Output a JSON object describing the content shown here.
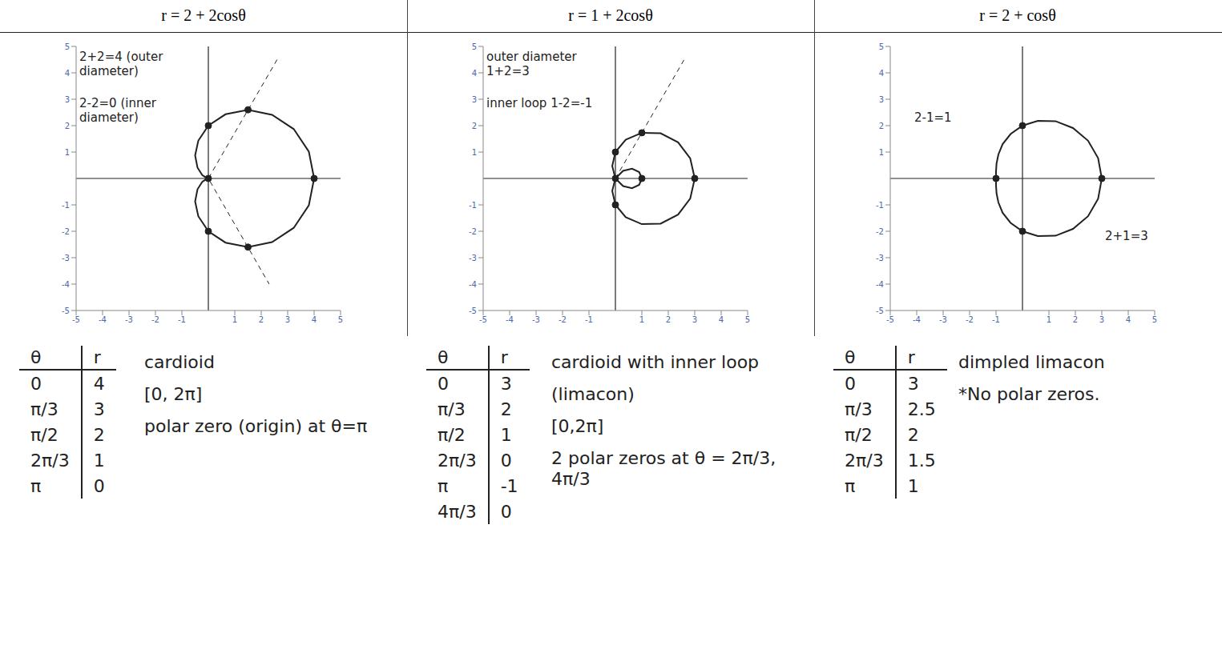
{
  "chart_data": [
    {
      "type": "line",
      "title": "r = 2 + 2cosθ",
      "xlim": [
        -5,
        5
      ],
      "ylim": [
        -5,
        5
      ],
      "xticks": [
        -5,
        -4,
        -3,
        -2,
        -1,
        1,
        2,
        3,
        4,
        5
      ],
      "yticks": [
        -5,
        -4,
        -3,
        -2,
        -1,
        1,
        2,
        3,
        4,
        5
      ],
      "series": [
        {
          "type": "line",
          "color": "#222222",
          "x": [
            4,
            3.8,
            3.23,
            2.41,
            1.5,
            0.65,
            0,
            -0.38,
            -0.5,
            -0.41,
            -0.23,
            -0.07,
            0,
            -0.07,
            -0.23,
            -0.41,
            -0.5,
            -0.38,
            0,
            0.65,
            1.5,
            2.41,
            3.23,
            3.8,
            4
          ],
          "values": [
            0,
            1.02,
            1.87,
            2.41,
            2.6,
            2.43,
            2,
            1.43,
            0.87,
            0.41,
            0.13,
            0.02,
            0,
            -0.02,
            -0.13,
            -0.41,
            -0.87,
            -1.43,
            -2,
            -2.43,
            -2.6,
            -2.41,
            -1.87,
            -1.02,
            0
          ]
        },
        {
          "type": "line",
          "line_style": "dashed",
          "color": "#222222",
          "x": [
            2.6,
            0,
            2.3
          ],
          "values": [
            4.5,
            0,
            -4
          ]
        },
        {
          "type": "scatter",
          "marker": "circle",
          "color": "#222222",
          "x": [
            4,
            0,
            0,
            0,
            1.5,
            1.5
          ],
          "values": [
            0,
            2,
            -2,
            0,
            2.6,
            -2.6
          ]
        }
      ],
      "annotations": [
        "2+2=4 (outer diameter)",
        "2-2=0 (inner diameter)"
      ],
      "notes": [
        "cardioid",
        "[0, 2π]",
        "polar zero (origin) at θ=π"
      ],
      "table": {
        "columns": [
          "θ",
          "r"
        ],
        "rows": [
          [
            "0",
            4
          ],
          [
            "π/3",
            3
          ],
          [
            "π/2",
            2
          ],
          [
            "2π/3",
            1
          ],
          [
            "π",
            0
          ]
        ]
      }
    },
    {
      "type": "line",
      "title": "r = 1 + 2cosθ",
      "xlim": [
        -5,
        5
      ],
      "ylim": [
        -5,
        5
      ],
      "xticks": [
        -5,
        -4,
        -3,
        -2,
        -1,
        1,
        2,
        3,
        4,
        5
      ],
      "yticks": [
        -5,
        -4,
        -3,
        -2,
        -1,
        1,
        2,
        3,
        4,
        5
      ],
      "series": [
        {
          "type": "line",
          "color": "#222222",
          "x": [
            3,
            2.83,
            2.37,
            1.71,
            1,
            0.39,
            0,
            -0.12,
            0,
            0.29,
            0.63,
            0.9,
            1,
            0.9,
            0.63,
            0.29,
            0,
            -0.12,
            0,
            0.39,
            1,
            1.71,
            2.37,
            2.83,
            3
          ],
          "values": [
            0,
            0.76,
            1.37,
            1.71,
            1.73,
            1.47,
            1,
            0.47,
            0,
            -0.29,
            -0.37,
            -0.24,
            0,
            0.24,
            0.37,
            0.29,
            0,
            -0.47,
            -1,
            -1.47,
            -1.73,
            -1.71,
            -1.37,
            -0.76,
            0
          ]
        },
        {
          "type": "line",
          "line_style": "dashed",
          "color": "#222222",
          "x": [
            0,
            2.6
          ],
          "values": [
            0,
            4.5
          ]
        },
        {
          "type": "scatter",
          "marker": "circle",
          "color": "#222222",
          "x": [
            3,
            0,
            0,
            0,
            1,
            1
          ],
          "values": [
            0,
            1,
            -1,
            0,
            0,
            1.73
          ]
        }
      ],
      "annotations": [
        "outer diameter 1+2=3",
        "inner loop 1-2=-1"
      ],
      "notes": [
        "cardioid with inner loop",
        "(limacon)",
        "[0,2π]",
        "2 polar zeros at θ = 2π/3, 4π/3"
      ],
      "table": {
        "columns": [
          "θ",
          "r"
        ],
        "rows": [
          [
            "0",
            3
          ],
          [
            "π/3",
            2
          ],
          [
            "π/2",
            1
          ],
          [
            "2π/3",
            0
          ],
          [
            "π",
            -1
          ],
          [
            "4π/3",
            0
          ]
        ]
      }
    },
    {
      "type": "line",
      "title": "r = 2 + cosθ",
      "xlim": [
        -5,
        5
      ],
      "ylim": [
        -5,
        5
      ],
      "xticks": [
        -5,
        -4,
        -3,
        -2,
        -1,
        1,
        2,
        3,
        4,
        5
      ],
      "yticks": [
        -5,
        -4,
        -3,
        -2,
        -1,
        1,
        2,
        3,
        4,
        5
      ],
      "series": [
        {
          "type": "line",
          "color": "#222222",
          "x": [
            3,
            2.86,
            2.48,
            1.91,
            1.25,
            0.58,
            0,
            -0.45,
            -0.75,
            -0.91,
            -0.98,
            -1,
            -1,
            -1,
            -0.98,
            -0.91,
            -0.75,
            -0.45,
            0,
            0.58,
            1.25,
            1.91,
            2.48,
            2.86,
            3
          ],
          "values": [
            0,
            0.77,
            1.43,
            1.91,
            2.17,
            2.18,
            2,
            1.68,
            1.3,
            0.91,
            0.57,
            0.27,
            0,
            -0.27,
            -0.57,
            -0.91,
            -1.3,
            -1.68,
            -2,
            -2.18,
            -2.17,
            -1.91,
            -1.43,
            -0.77,
            0
          ]
        },
        {
          "type": "scatter",
          "marker": "circle",
          "color": "#222222",
          "x": [
            3,
            0,
            0,
            -1
          ],
          "values": [
            0,
            2,
            -2,
            0
          ]
        }
      ],
      "annotations": [
        "2-1=1",
        "2+1=3"
      ],
      "notes": [
        "dimpled limacon",
        "*No polar zeros."
      ],
      "table": {
        "columns": [
          "θ",
          "r"
        ],
        "rows": [
          [
            "0",
            3
          ],
          [
            "π/3",
            2.5
          ],
          [
            "π/2",
            2
          ],
          [
            "2π/3",
            1.5
          ],
          [
            "π",
            1
          ]
        ]
      }
    }
  ]
}
